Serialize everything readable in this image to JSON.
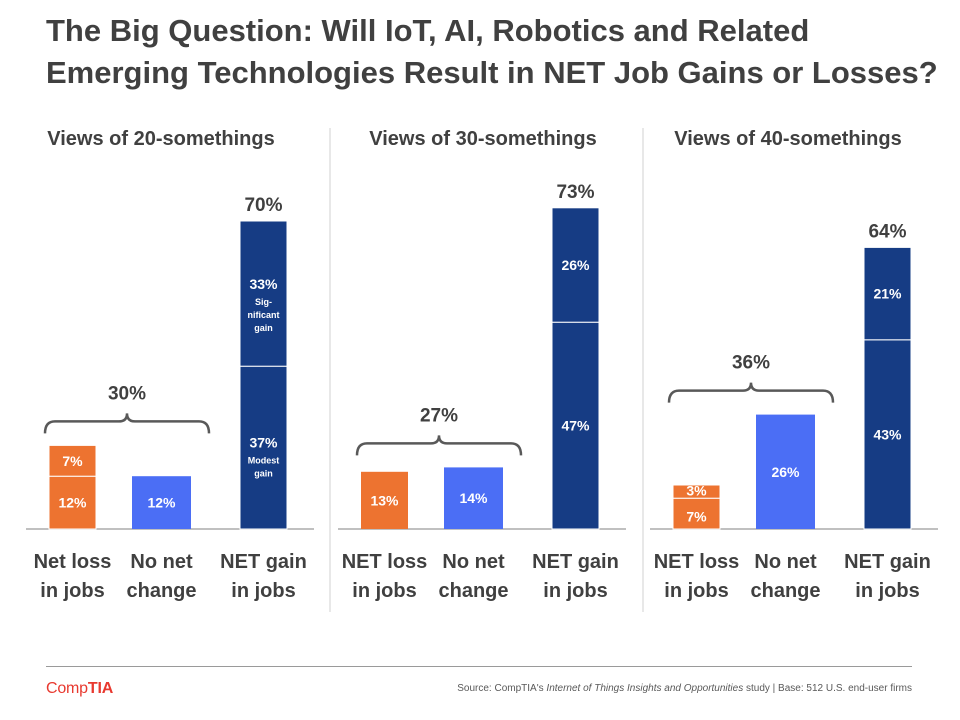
{
  "title": {
    "line1": "The Big Question: Will IoT, AI, Robotics and Related",
    "line2": "Emerging Technologies Result in NET Job Gains or Losses?"
  },
  "colors": {
    "loss": "#ed7330",
    "no_change": "#4b6ef5",
    "gain": "#163c84",
    "text": "#404040",
    "axis": "#9a9a9a"
  },
  "chart_data": [
    {
      "type": "bar",
      "title": "Views of 20-somethings",
      "categories": [
        "Net loss\nin jobs",
        "No net\nchange",
        "NET gain\nin jobs"
      ],
      "stacks": [
        [
          {
            "value": 12,
            "label": "12%"
          },
          {
            "value": 7,
            "label": "7%"
          }
        ],
        [
          {
            "value": 12,
            "label": "12%"
          }
        ],
        [
          {
            "value": 37,
            "label": "37%",
            "sub": "Modest\ngain"
          },
          {
            "value": 33,
            "label": "33%",
            "sub": "Sig-\nnificant\ngain"
          }
        ]
      ],
      "totals": [
        "",
        "",
        "70%"
      ],
      "bracket": {
        "label": "30%",
        "spans": [
          0,
          1
        ]
      },
      "ylim": [
        0,
        80
      ]
    },
    {
      "type": "bar",
      "title": "Views of 30-somethings",
      "categories": [
        "NET loss\nin jobs",
        "No net\nchange",
        "NET gain\nin jobs"
      ],
      "stacks": [
        [
          {
            "value": 13,
            "label": "13%"
          }
        ],
        [
          {
            "value": 14,
            "label": "14%"
          }
        ],
        [
          {
            "value": 47,
            "label": "47%"
          },
          {
            "value": 26,
            "label": "26%"
          }
        ]
      ],
      "totals": [
        "",
        "",
        "73%"
      ],
      "bracket": {
        "label": "27%",
        "spans": [
          0,
          1
        ]
      },
      "ylim": [
        0,
        80
      ]
    },
    {
      "type": "bar",
      "title": "Views of 40-somethings",
      "categories": [
        "NET loss\nin jobs",
        "No net\nchange",
        "NET gain\nin jobs"
      ],
      "stacks": [
        [
          {
            "value": 7,
            "label": "7%"
          },
          {
            "value": 3,
            "label": "3%"
          }
        ],
        [
          {
            "value": 26,
            "label": "26%"
          }
        ],
        [
          {
            "value": 43,
            "label": "43%"
          },
          {
            "value": 21,
            "label": "21%"
          }
        ]
      ],
      "totals": [
        "",
        "",
        "64%"
      ],
      "bracket": {
        "label": "36%",
        "spans": [
          0,
          1
        ]
      },
      "ylim": [
        0,
        80
      ]
    }
  ],
  "footer": {
    "logo_comp": "Comp",
    "logo_tia": "TIA",
    "source_prefix": "Source: CompTIA's ",
    "source_title": "Internet of Things Insights and Opportunities",
    "source_suffix": " study | Base: 512 U.S. end-user firms"
  }
}
